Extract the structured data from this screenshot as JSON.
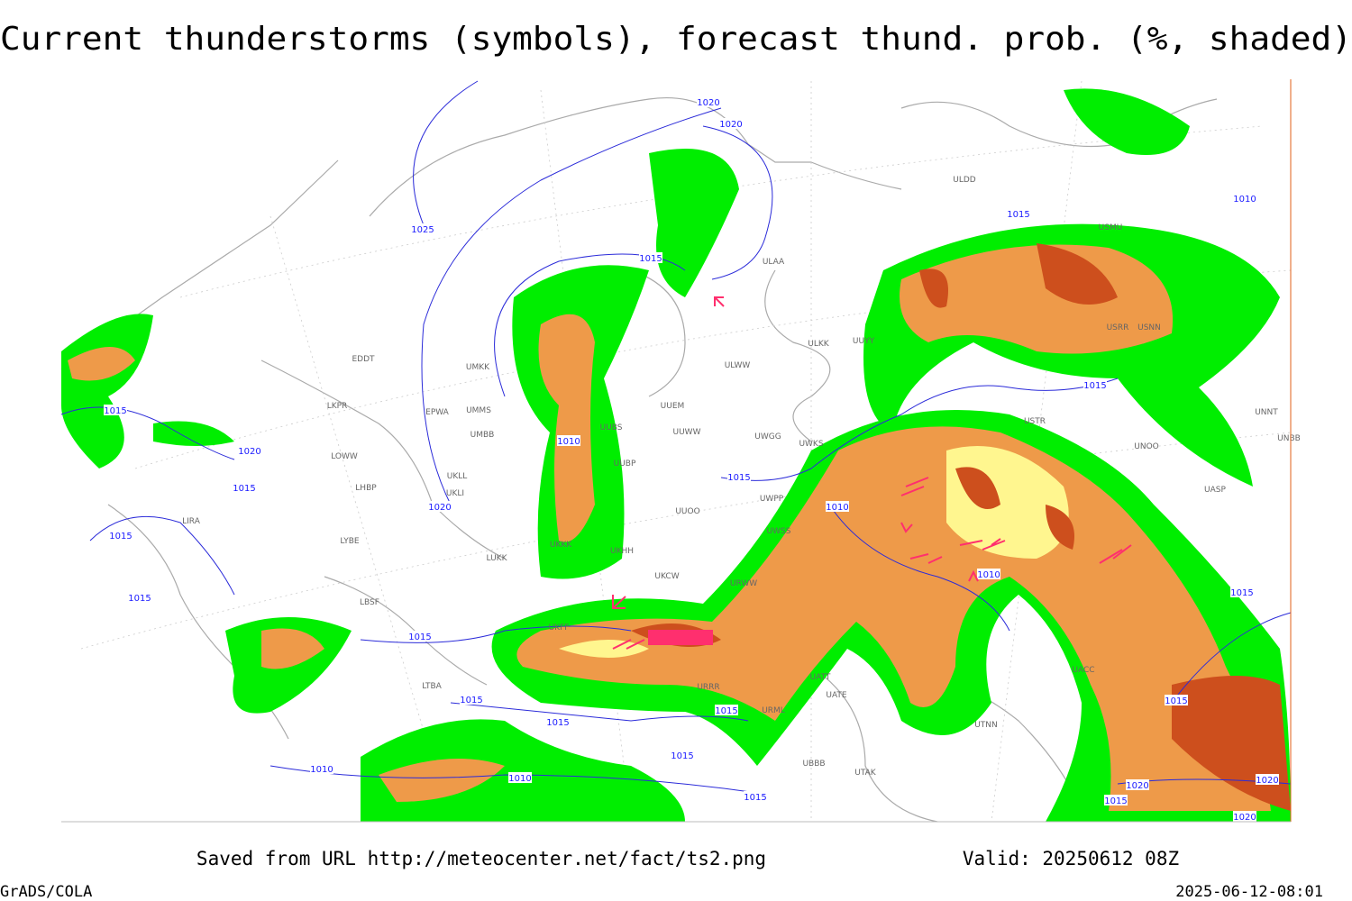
{
  "header": {
    "title": "Current thunderstorms (symbols), forecast thund. prob. (%, shaded)"
  },
  "map": {
    "isobar_labels": [
      "1020",
      "1020",
      "1025",
      "1015",
      "1015",
      "1010",
      "1015",
      "1015",
      "1020",
      "1015",
      "1015",
      "1015",
      "1010",
      "1015",
      "1020",
      "1010",
      "1010",
      "1015",
      "1015",
      "1015",
      "1015",
      "1015",
      "1010",
      "1010",
      "1015",
      "1015",
      "1015",
      "1020",
      "1015",
      "1020",
      "1020"
    ],
    "stations": [
      "ULDD",
      "USMU",
      "ULAA",
      "ULKK",
      "UUYY",
      "ULWW",
      "UUEM",
      "UUWW",
      "UWGG",
      "UWKS",
      "UUBS",
      "UUBP",
      "UWPP",
      "UUOO",
      "UWSS",
      "UKHH",
      "UKKK",
      "UKCW",
      "URWW",
      "UKFF",
      "URRR",
      "UATT",
      "UATE",
      "URML",
      "UBBB",
      "UTAK",
      "UTNN",
      "UACC",
      "UNOO",
      "UNNT",
      "UNBB",
      "UASP",
      "USRR",
      "USNN",
      "USTR",
      "LUKK",
      "LYBE",
      "LBSF",
      "LIRA",
      "LOWW",
      "LHBP",
      "LKPR",
      "EDDT",
      "EPWA",
      "UMMS",
      "UMBB",
      "UKLL",
      "UKLI",
      "UMKK",
      "LTBA"
    ]
  },
  "footer": {
    "saved": "Saved from URL http://meteocenter.net/fact/ts2.png",
    "valid": "Valid: 20250612 08Z",
    "software": "GrADS/COLA",
    "timestamp": "2025-06-12-08:01"
  }
}
